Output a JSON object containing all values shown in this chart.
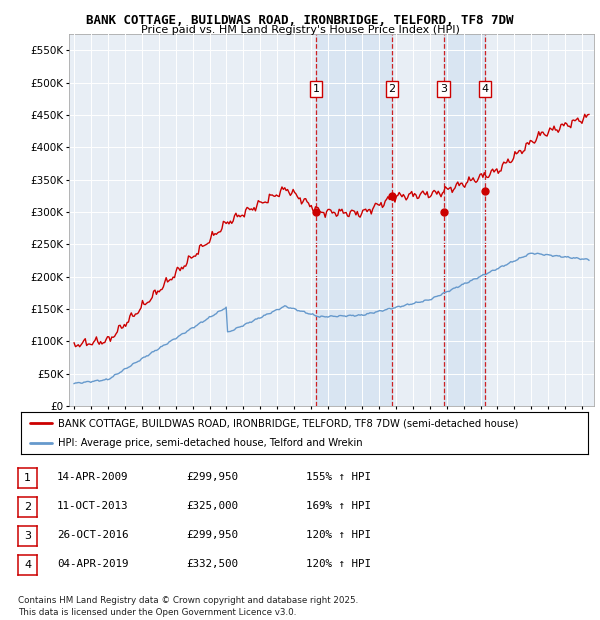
{
  "title": "BANK COTTAGE, BUILDWAS ROAD, IRONBRIDGE, TELFORD, TF8 7DW",
  "subtitle": "Price paid vs. HM Land Registry's House Price Index (HPI)",
  "ylim": [
    0,
    575000
  ],
  "yticks": [
    0,
    50000,
    100000,
    150000,
    200000,
    250000,
    300000,
    350000,
    400000,
    450000,
    500000,
    550000
  ],
  "ytick_labels": [
    "£0",
    "£50K",
    "£100K",
    "£150K",
    "£200K",
    "£250K",
    "£300K",
    "£350K",
    "£400K",
    "£450K",
    "£500K",
    "£550K"
  ],
  "hpi_color": "#6699cc",
  "price_color": "#cc0000",
  "vline_color": "#cc0000",
  "marker_color": "#cc0000",
  "purchase_dates": [
    2009.29,
    2013.78,
    2016.82,
    2019.26
  ],
  "purchase_prices": [
    299950,
    325000,
    299950,
    332500
  ],
  "purchase_labels": [
    "1",
    "2",
    "3",
    "4"
  ],
  "legend_label_red": "BANK COTTAGE, BUILDWAS ROAD, IRONBRIDGE, TELFORD, TF8 7DW (semi-detached house)",
  "legend_label_blue": "HPI: Average price, semi-detached house, Telford and Wrekin",
  "table_data": [
    [
      "1",
      "14-APR-2009",
      "£299,950",
      "155% ↑ HPI"
    ],
    [
      "2",
      "11-OCT-2013",
      "£325,000",
      "169% ↑ HPI"
    ],
    [
      "3",
      "26-OCT-2016",
      "£299,950",
      "120% ↑ HPI"
    ],
    [
      "4",
      "04-APR-2019",
      "£332,500",
      "120% ↑ HPI"
    ]
  ],
  "footer": "Contains HM Land Registry data © Crown copyright and database right 2025.\nThis data is licensed under the Open Government Licence v3.0.",
  "background_color": "#ffffff",
  "plot_bg_color": "#e8eef5",
  "shade_color": "#d0e0f0"
}
